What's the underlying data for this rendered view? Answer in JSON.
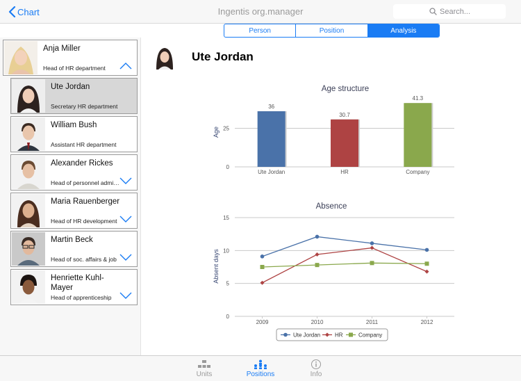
{
  "nav": {
    "back_label": "Chart",
    "app_title": "Ingentis org.manager",
    "search_placeholder": "Search..."
  },
  "segments": [
    {
      "label": "Person",
      "active": false
    },
    {
      "label": "Position",
      "active": false
    },
    {
      "label": "Analysis",
      "active": true
    }
  ],
  "people": [
    {
      "name": "Anja Miller",
      "role": "Head of HR department",
      "expanded": true,
      "selected": false
    },
    {
      "name": "Ute Jordan",
      "role": "Secretary HR department",
      "selected": true
    },
    {
      "name": "William Bush",
      "role": "Assistant HR department",
      "selected": false
    },
    {
      "name": "Alexander Rickes",
      "role": "Head of personnel administration",
      "has_children": true
    },
    {
      "name": "Maria Rauenberger",
      "role": "Head of HR development",
      "has_children": true
    },
    {
      "name": "Martin Beck",
      "role": "Head of soc. affairs & job",
      "has_children": true
    },
    {
      "name": "Henriette Kuhl-Mayer",
      "role": "Head of apprenticeship",
      "has_children": true
    }
  ],
  "detail": {
    "person_name": "Ute Jordan"
  },
  "chart_data": [
    {
      "type": "bar",
      "title": "Age structure",
      "ylabel": "Age",
      "categories": [
        "Ute Jordan",
        "HR",
        "Company"
      ],
      "values": [
        36,
        30.7,
        41.3
      ],
      "value_labels": [
        "36",
        "30.7",
        "41.3"
      ],
      "colors": [
        "#4a72a9",
        "#ae4343",
        "#8aa84c"
      ],
      "yticks": [
        0,
        25
      ],
      "ylim": [
        0,
        45
      ],
      "grid": true
    },
    {
      "type": "line",
      "title": "Absence",
      "ylabel": "Absent days",
      "x": [
        "2009",
        "2010",
        "2011",
        "2012"
      ],
      "yticks": [
        0,
        5,
        10,
        15
      ],
      "ylim": [
        0,
        15
      ],
      "grid": true,
      "legend": "bottom",
      "series": [
        {
          "name": "Ute Jordan",
          "values": [
            9.1,
            12.1,
            11.1,
            10.1
          ],
          "color": "#4a72a9",
          "marker": "circle"
        },
        {
          "name": "HR",
          "values": [
            5.1,
            9.4,
            10.4,
            6.8
          ],
          "color": "#ae4343",
          "marker": "diamond"
        },
        {
          "name": "Company",
          "values": [
            7.5,
            7.8,
            8.1,
            8.0
          ],
          "color": "#8aa84c",
          "marker": "square"
        }
      ]
    }
  ],
  "tabs": [
    {
      "label": "Units",
      "icon": "units-icon",
      "active": false
    },
    {
      "label": "Positions",
      "icon": "positions-icon",
      "active": true
    },
    {
      "label": "Info",
      "icon": "info-icon",
      "active": false
    }
  ]
}
